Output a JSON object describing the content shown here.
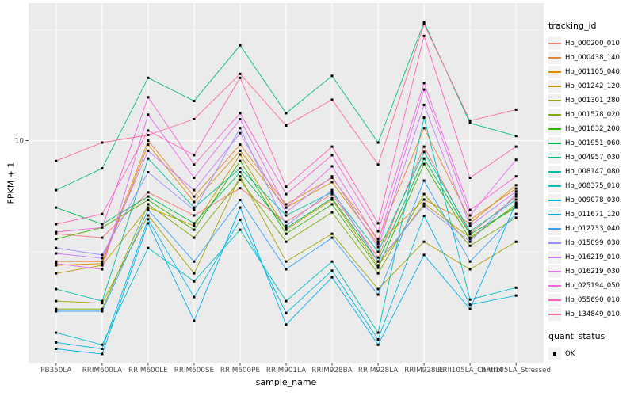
{
  "chart_data": {
    "type": "line",
    "title": "",
    "xlabel": "sample_name",
    "ylabel": "FPKM + 1",
    "y_scale": "log10",
    "ylim": [
      0.996,
      41.7
    ],
    "y_major_breaks": [
      10
    ],
    "y_major_labels": [
      "10"
    ],
    "y_minor_breaks": [
      3.162,
      31.62
    ],
    "grid": true,
    "legend_position": "right",
    "panel_bg": "#EBEBEB",
    "grid_color": "#FFFFFF",
    "tick_label_color": "#4D4D4D",
    "point_color": "#000000",
    "legend_title": "tracking_id",
    "legend2_title": "quant_status",
    "legend2_items": [
      {
        "label": "OK",
        "marker": "black-square"
      }
    ],
    "categories": [
      "PB350LA",
      "RRIM600LA",
      "RRIM600LE",
      "RRIM600SE",
      "RRIM600PE",
      "RRIM901LA",
      "RRIM928BA",
      "RRIM928LA",
      "RRIM928LE",
      "RRII105LA_Control",
      "RRII105LA_Stressed"
    ],
    "series": [
      {
        "name": "Hb_000200_010",
        "color": "#F8766D",
        "values": [
          3.8,
          3.65,
          5.85,
          4.6,
          6.1,
          4.3,
          5.74,
          2.97,
          9.4,
          3.8,
          5.6
        ]
      },
      {
        "name": "Hb_000438_140",
        "color": "#EA8331",
        "values": [
          2.85,
          2.85,
          10.0,
          5.6,
          9.6,
          5.16,
          6.8,
          3.6,
          11.4,
          4.4,
          6.08
        ]
      },
      {
        "name": "Hb_001105_040",
        "color": "#D89000",
        "values": [
          2.74,
          2.79,
          9.6,
          5.29,
          9.0,
          4.99,
          6.5,
          3.42,
          5.42,
          4.24,
          6.3
        ]
      },
      {
        "name": "Hb_001242_120",
        "color": "#C09B00",
        "values": [
          2.52,
          2.74,
          4.99,
          4.13,
          8.66,
          3.96,
          5.42,
          2.74,
          5.2,
          3.65,
          5.07
        ]
      },
      {
        "name": "Hb_001301_280",
        "color": "#A3A500",
        "values": [
          1.89,
          1.85,
          4.6,
          2.52,
          6.9,
          2.85,
          3.8,
          2.14,
          3.5,
          2.63,
          3.5
        ]
      },
      {
        "name": "Hb_001578_020",
        "color": "#7CAE00",
        "values": [
          1.74,
          1.74,
          5.16,
          3.65,
          6.65,
          3.5,
          4.75,
          2.52,
          5.74,
          3.36,
          4.49
        ]
      },
      {
        "name": "Hb_001832_200",
        "color": "#39B600",
        "values": [
          3.6,
          4.06,
          5.4,
          3.96,
          8.1,
          3.8,
          5.16,
          2.67,
          7.85,
          3.6,
          5.16
        ]
      },
      {
        "name": "Hb_001951_060",
        "color": "#00BB4E",
        "values": [
          4.99,
          4.2,
          5.6,
          4.24,
          7.2,
          4.03,
          5.5,
          2.85,
          8.3,
          3.78,
          4.99
        ]
      },
      {
        "name": "Hb_004957_030",
        "color": "#00BF7D",
        "values": [
          5.98,
          7.5,
          19.2,
          15.1,
          26.9,
          13.3,
          19.6,
          9.8,
          34.2,
          12.0,
          10.5
        ]
      },
      {
        "name": "Hb_008147_080",
        "color": "#00C1A3",
        "values": [
          2.14,
          1.89,
          8.3,
          4.99,
          7.5,
          4.6,
          5.85,
          3.15,
          8.9,
          3.9,
          5.42
        ]
      },
      {
        "name": "Hb_008375_010",
        "color": "#00BFC4",
        "values": [
          1.36,
          1.2,
          3.28,
          2.32,
          3.96,
          1.89,
          2.85,
          1.36,
          12.7,
          1.92,
          2.17
        ]
      },
      {
        "name": "Hb_009078_030",
        "color": "#00BAE0",
        "values": [
          1.23,
          1.15,
          4.42,
          1.97,
          4.4,
          1.67,
          2.59,
          1.27,
          4.58,
          1.82,
          2.0
        ]
      },
      {
        "name": "Hb_011671_120",
        "color": "#00B0F6",
        "values": [
          1.15,
          1.09,
          4.24,
          1.54,
          4.99,
          1.48,
          2.42,
          1.2,
          3.05,
          1.74,
          5.25
        ]
      },
      {
        "name": "Hb_012733_040",
        "color": "#35A2FF",
        "values": [
          1.7,
          1.7,
          4.87,
          2.85,
          5.4,
          2.63,
          3.65,
          2.02,
          6.6,
          2.85,
          4.67
        ]
      },
      {
        "name": "Hb_015099_030",
        "color": "#9590FF",
        "values": [
          3.28,
          3.05,
          7.2,
          4.87,
          11.4,
          4.13,
          5.98,
          2.85,
          5.07,
          3.5,
          5.74
        ]
      },
      {
        "name": "Hb_016219_010",
        "color": "#C77CFF",
        "values": [
          3.1,
          2.95,
          9.0,
          5.98,
          10.8,
          4.75,
          6.9,
          3.31,
          14.5,
          4.13,
          5.9
        ]
      },
      {
        "name": "Hb_016219_030",
        "color": "#E76BF3",
        "values": [
          2.79,
          2.63,
          13.1,
          6.8,
          12.5,
          4.99,
          7.66,
          3.5,
          17.0,
          4.6,
          8.2
        ]
      },
      {
        "name": "Hb_025194_050",
        "color": "#FA62DB",
        "values": [
          3.87,
          4.06,
          15.7,
          7.8,
          13.3,
          5.74,
          8.6,
          3.9,
          18.2,
          4.87,
          6.9
        ]
      },
      {
        "name": "Hb_055690_010",
        "color": "#FF62BC",
        "values": [
          4.2,
          4.67,
          11.1,
          8.6,
          19.2,
          6.2,
          9.4,
          4.24,
          29.7,
          6.8,
          9.4
        ]
      },
      {
        "name": "Hb_134849_010",
        "color": "#FF6A98",
        "values": [
          8.1,
          9.8,
          10.6,
          12.5,
          20.0,
          11.7,
          15.3,
          7.8,
          33.6,
          12.3,
          13.8
        ]
      }
    ]
  }
}
